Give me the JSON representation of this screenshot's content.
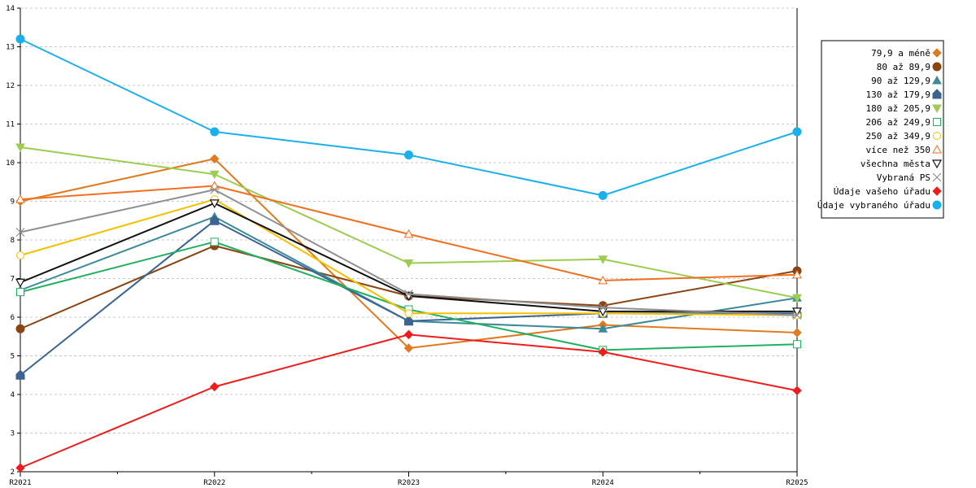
{
  "chart_data": {
    "type": "line",
    "x": [
      "R2021",
      "R2022",
      "R2023",
      "R2024",
      "R2025"
    ],
    "ylim": [
      2,
      14
    ],
    "yticks": [
      2,
      3,
      4,
      5,
      6,
      7,
      8,
      9,
      10,
      11,
      12,
      13,
      14
    ],
    "grid": "horizontal dashed",
    "legend_position": "right",
    "series": [
      {
        "name": "79,9 a méně",
        "color": "#e07b20",
        "marker": "diamond",
        "values": [
          9.0,
          10.1,
          5.2,
          5.8,
          5.6
        ]
      },
      {
        "name": "80 až 89,9",
        "color": "#8b4513",
        "marker": "circle",
        "values": [
          5.7,
          7.85,
          6.55,
          6.3,
          7.2
        ]
      },
      {
        "name": "90 až 129,9",
        "color": "#3a8a9a",
        "marker": "triangle-up",
        "values": [
          6.7,
          8.6,
          5.9,
          5.7,
          6.5
        ]
      },
      {
        "name": "130 až 179,9",
        "color": "#3b6590",
        "marker": "house",
        "values": [
          4.5,
          8.5,
          5.9,
          6.1,
          6.1
        ]
      },
      {
        "name": "180 až 205,9",
        "color": "#9ccc50",
        "marker": "triangle-down",
        "values": [
          10.4,
          9.7,
          7.4,
          7.5,
          6.5
        ]
      },
      {
        "name": "206 až 249,9",
        "color": "#20b060",
        "marker": "square-open",
        "values": [
          6.65,
          7.95,
          6.2,
          5.15,
          5.3
        ]
      },
      {
        "name": "250 až 349,9",
        "color": "#f5c000",
        "marker": "circle-open",
        "values": [
          7.6,
          9.05,
          6.1,
          6.1,
          6.05
        ]
      },
      {
        "name": "více než 350",
        "color": "#f07020",
        "marker": "triangle-up-open",
        "values": [
          9.05,
          9.4,
          8.15,
          6.95,
          7.1
        ]
      },
      {
        "name": "všechna města",
        "color": "#111111",
        "marker": "triangle-down-open",
        "values": [
          6.9,
          8.95,
          6.55,
          6.15,
          6.15
        ]
      },
      {
        "name": "Vybraná PS",
        "color": "#909090",
        "marker": "cross",
        "values": [
          8.2,
          9.3,
          6.6,
          6.25,
          6.05
        ]
      },
      {
        "name": "Údaje vašeho úřadu",
        "color": "#ee1c1c",
        "marker": "diamond",
        "values": [
          2.1,
          4.2,
          5.55,
          5.1,
          4.1
        ]
      },
      {
        "name": "Údaje vybraného úřadu",
        "color": "#1ab0ea",
        "marker": "circle",
        "values": [
          13.2,
          10.8,
          10.2,
          9.15,
          10.8
        ]
      }
    ]
  }
}
